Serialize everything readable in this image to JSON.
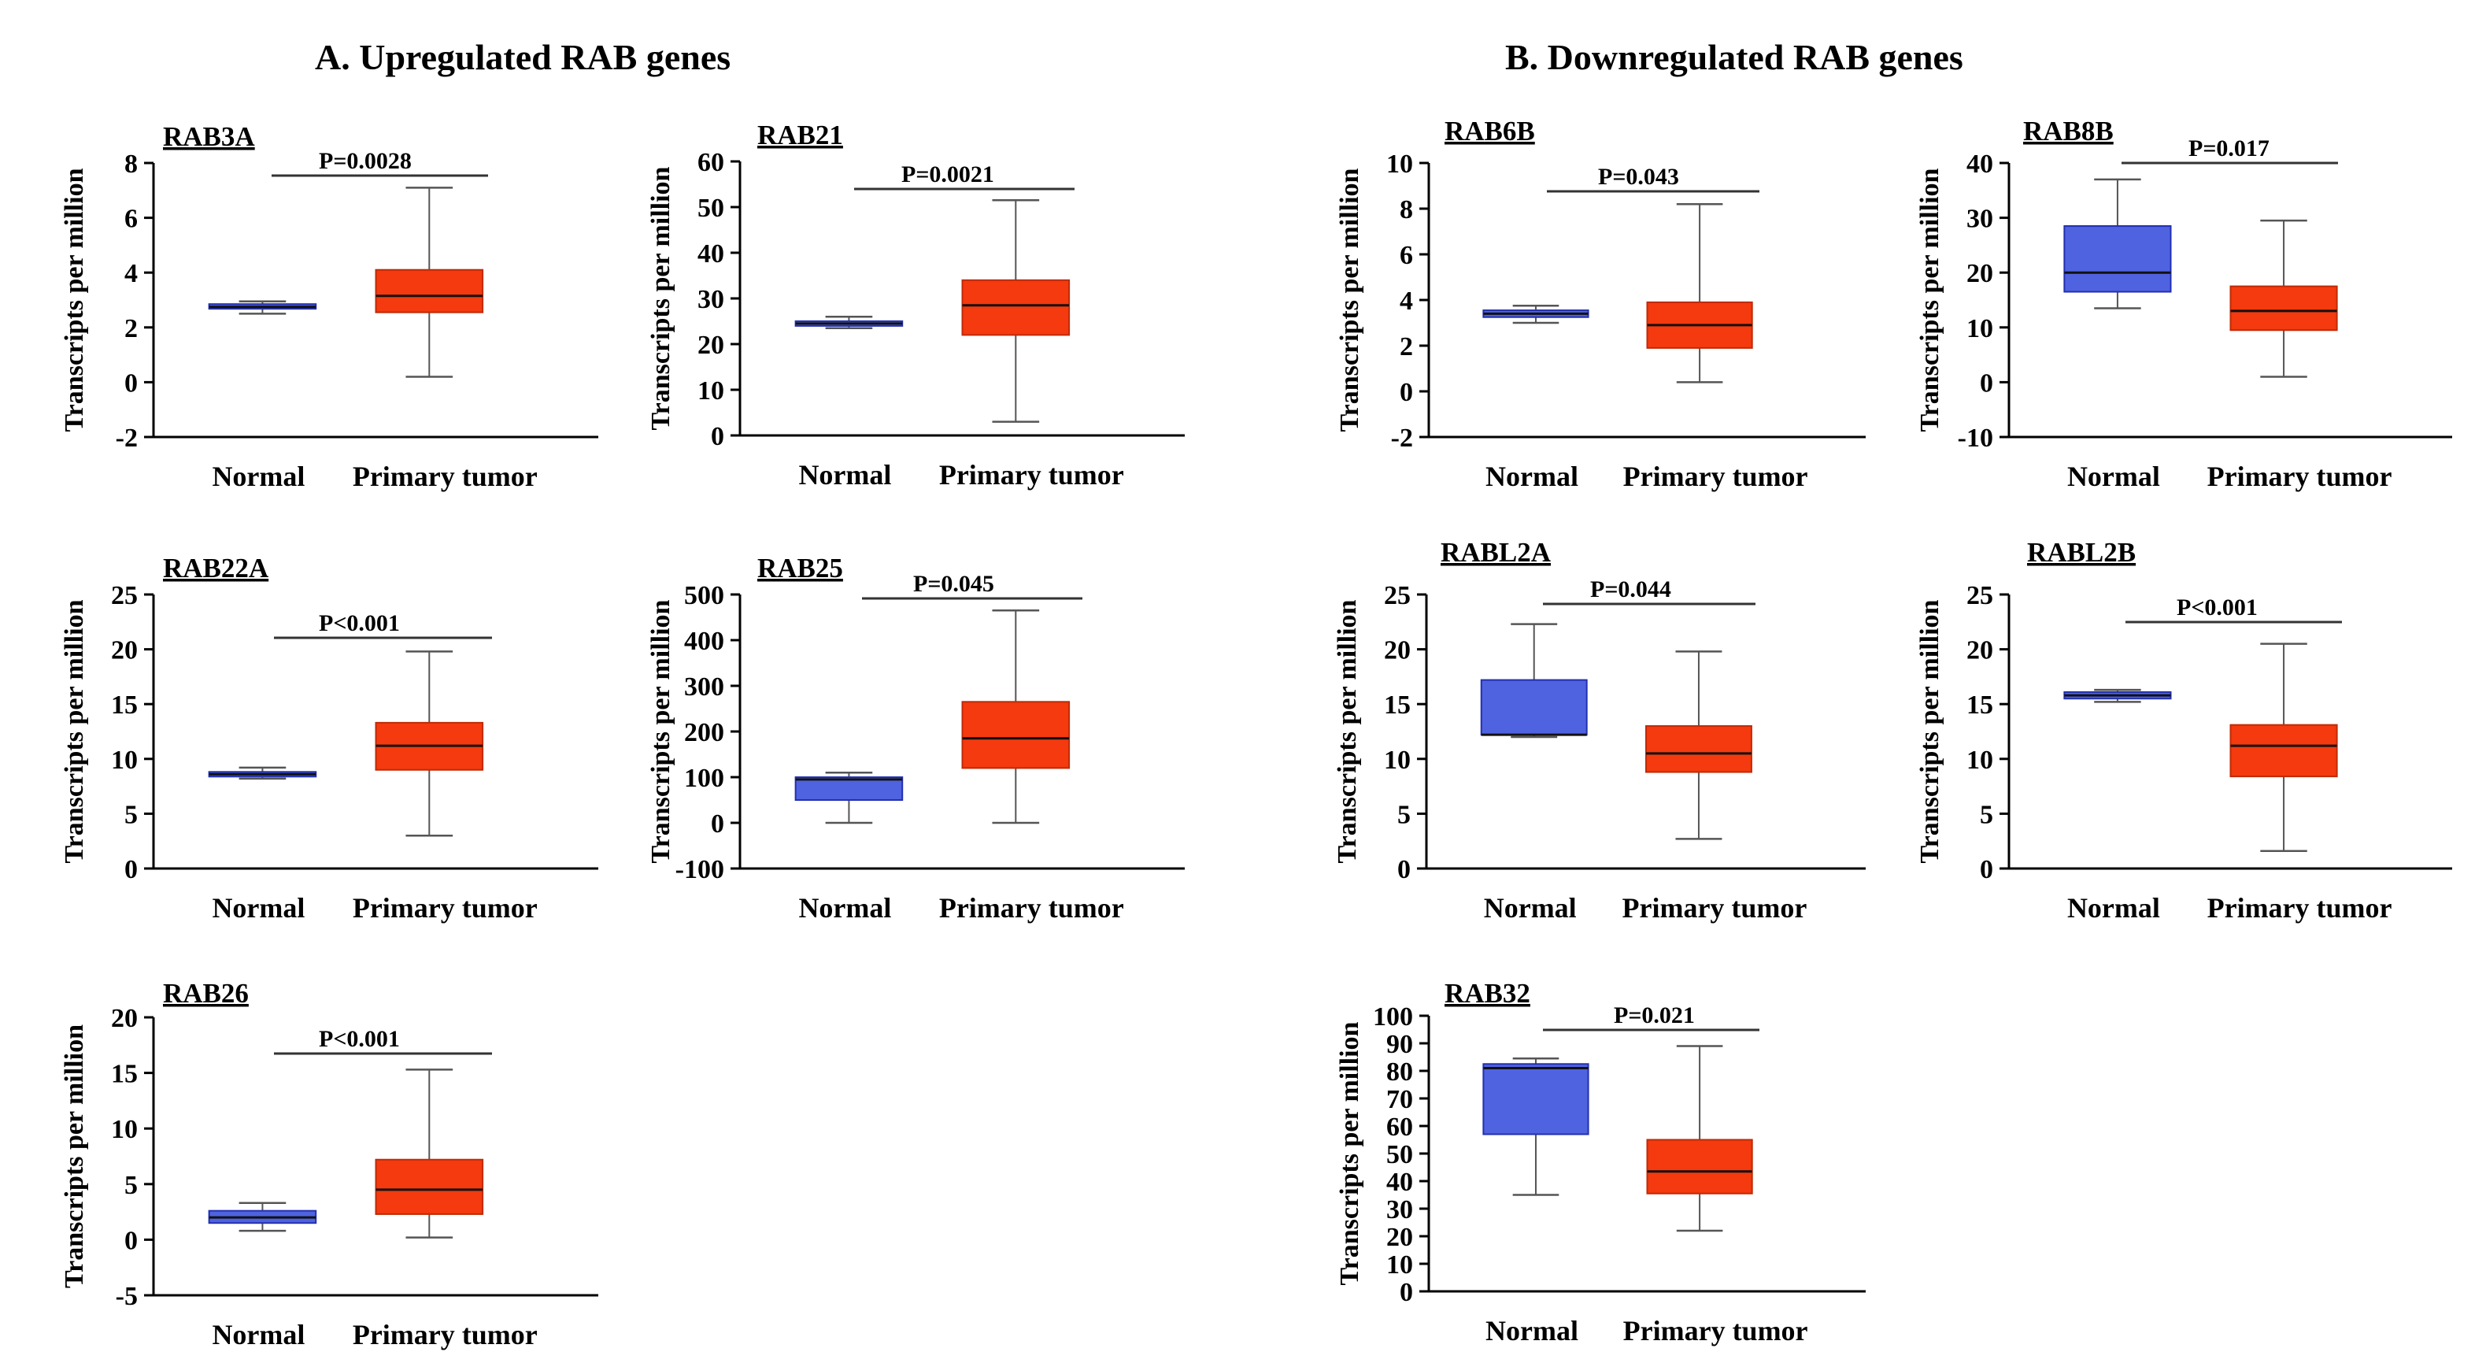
{
  "headings": {
    "left": "A.  Upregulated RAB genes",
    "right": "B.  Downregulated RAB genes"
  },
  "colors": {
    "normal": "#4f63e0",
    "tumor": "#f43a0e",
    "normal_edge": "#2230b0",
    "tumor_edge": "#c02a06",
    "axis": "#000000",
    "whisker": "#555555"
  },
  "chart_data": [
    {
      "type": "box",
      "title": "RAB3A",
      "ylabel": "Transcripts  per million",
      "ylim": [
        -2,
        8
      ],
      "yticks": [
        -2,
        0,
        2,
        4,
        6,
        8
      ],
      "categories": [
        "Normal",
        "Primary  tumor"
      ],
      "pvalue": "P=0.0028",
      "boxes": [
        {
          "min": 2.5,
          "q1": 2.68,
          "median": 2.75,
          "q3": 2.85,
          "max": 2.95
        },
        {
          "min": 0.2,
          "q1": 2.55,
          "median": 3.15,
          "q3": 4.1,
          "max": 7.1
        }
      ]
    },
    {
      "type": "box",
      "title": "RAB21",
      "ylabel": "Transcripts  per million",
      "ylim": [
        0,
        60
      ],
      "yticks": [
        0,
        10,
        20,
        30,
        40,
        50,
        60
      ],
      "categories": [
        "Normal",
        "Primary  tumor"
      ],
      "pvalue": "P=0.0021",
      "boxes": [
        {
          "min": 23.5,
          "q1": 24.0,
          "median": 24.5,
          "q3": 25.0,
          "max": 26.0
        },
        {
          "min": 3.0,
          "q1": 22.0,
          "median": 28.5,
          "q3": 34.0,
          "max": 51.5
        }
      ]
    },
    {
      "type": "box",
      "title": "RAB22A",
      "ylabel": "Transcripts  per million",
      "ylim": [
        0,
        25
      ],
      "yticks": [
        0,
        5,
        10,
        15,
        20,
        25
      ],
      "categories": [
        "Normal",
        "Primary  tumor"
      ],
      "pvalue": "P<0.001",
      "boxes": [
        {
          "min": 8.2,
          "q1": 8.4,
          "median": 8.6,
          "q3": 8.8,
          "max": 9.2
        },
        {
          "min": 3.0,
          "q1": 9.0,
          "median": 11.2,
          "q3": 13.3,
          "max": 19.8
        }
      ]
    },
    {
      "type": "box",
      "title": "RAB25",
      "ylabel": "Transcripts  per million",
      "ylim": [
        -100,
        500
      ],
      "yticks": [
        -100,
        0,
        100,
        200,
        300,
        400,
        500
      ],
      "categories": [
        "Normal",
        "Primary  tumor"
      ],
      "pvalue": "P=0.045",
      "boxes": [
        {
          "min": 0,
          "q1": 50,
          "median": 95,
          "q3": 100,
          "max": 110
        },
        {
          "min": 0,
          "q1": 120,
          "median": 185,
          "q3": 265,
          "max": 465
        }
      ]
    },
    {
      "type": "box",
      "title": "RAB26",
      "ylabel": "Transcripts  per million",
      "ylim": [
        -5,
        20
      ],
      "yticks": [
        -5,
        0,
        5,
        10,
        15,
        20
      ],
      "categories": [
        "Normal",
        "Primary  tumor"
      ],
      "pvalue": "P<0.001",
      "boxes": [
        {
          "min": 0.8,
          "q1": 1.5,
          "median": 2.0,
          "q3": 2.6,
          "max": 3.3
        },
        {
          "min": 0.2,
          "q1": 2.3,
          "median": 4.5,
          "q3": 7.2,
          "max": 15.3
        }
      ]
    },
    {
      "type": "box",
      "title": "RAB6B",
      "ylabel": "Transcripts  per million",
      "ylim": [
        -2,
        10
      ],
      "yticks": [
        -2,
        0,
        2,
        4,
        6,
        8,
        10
      ],
      "categories": [
        "Normal",
        "Primary  tumor"
      ],
      "pvalue": "P=0.043",
      "boxes": [
        {
          "min": 3.0,
          "q1": 3.25,
          "median": 3.4,
          "q3": 3.55,
          "max": 3.75
        },
        {
          "min": 0.4,
          "q1": 1.9,
          "median": 2.9,
          "q3": 3.9,
          "max": 8.2
        }
      ]
    },
    {
      "type": "box",
      "title": "RAB8B",
      "ylabel": "Transcripts  per million",
      "ylim": [
        -10,
        40
      ],
      "yticks": [
        -10,
        0,
        10,
        20,
        30,
        40
      ],
      "categories": [
        "Normal",
        "Primary  tumor"
      ],
      "pvalue": "P=0.017",
      "boxes": [
        {
          "min": 13.5,
          "q1": 16.5,
          "median": 20.0,
          "q3": 28.5,
          "max": 37.0
        },
        {
          "min": 1.0,
          "q1": 9.5,
          "median": 13.0,
          "q3": 17.5,
          "max": 29.5
        }
      ]
    },
    {
      "type": "box",
      "title": "RABL2A",
      "ylabel": "Transcripts  per million",
      "ylim": [
        0,
        25
      ],
      "yticks": [
        0,
        5,
        10,
        15,
        20,
        25
      ],
      "categories": [
        "Normal",
        "Primary  tumor"
      ],
      "pvalue": "P=0.044",
      "boxes": [
        {
          "min": 12.0,
          "q1": 12.2,
          "median": 12.2,
          "q3": 17.2,
          "max": 22.3
        },
        {
          "min": 2.7,
          "q1": 8.8,
          "median": 10.5,
          "q3": 13.0,
          "max": 19.8
        }
      ]
    },
    {
      "type": "box",
      "title": "RABL2B",
      "ylabel": "Transcripts  per million",
      "ylim": [
        0,
        25
      ],
      "yticks": [
        0,
        5,
        10,
        15,
        20,
        25
      ],
      "categories": [
        "Normal",
        "Primary  tumor"
      ],
      "pvalue": "P<0.001",
      "boxes": [
        {
          "min": 15.2,
          "q1": 15.5,
          "median": 15.8,
          "q3": 16.1,
          "max": 16.3
        },
        {
          "min": 1.6,
          "q1": 8.4,
          "median": 11.2,
          "q3": 13.1,
          "max": 20.5
        }
      ]
    },
    {
      "type": "box",
      "title": "RAB32",
      "ylabel": "Transcripts  per million",
      "ylim": [
        0,
        100
      ],
      "yticks": [
        0,
        10,
        20,
        30,
        40,
        50,
        60,
        70,
        80,
        90,
        100
      ],
      "categories": [
        "Normal",
        "Primary  tumor"
      ],
      "pvalue": "P=0.021",
      "boxes": [
        {
          "min": 35.0,
          "q1": 57.0,
          "median": 81.0,
          "q3": 82.5,
          "max": 84.5
        },
        {
          "min": 22.0,
          "q1": 35.5,
          "median": 43.5,
          "q3": 55.0,
          "max": 89.0
        }
      ]
    }
  ]
}
